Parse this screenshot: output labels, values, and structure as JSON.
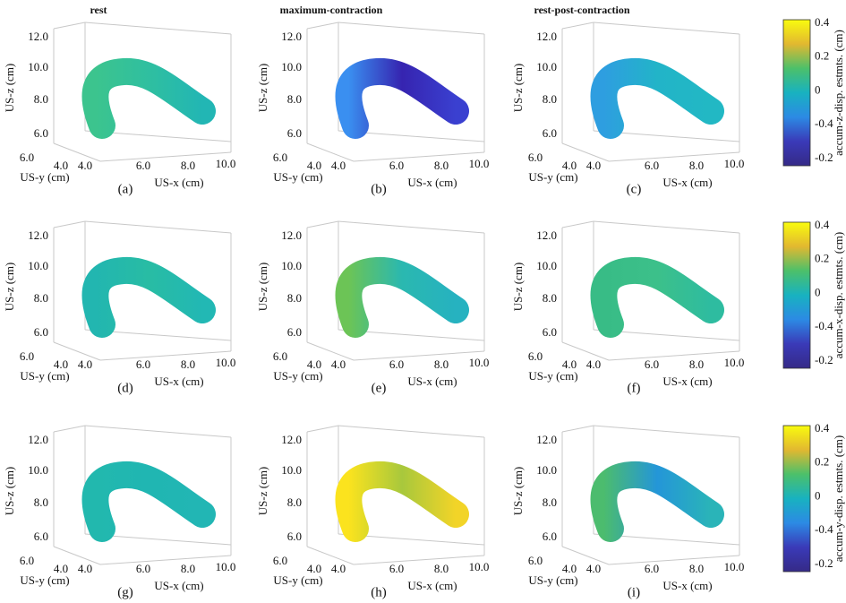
{
  "columns": [
    "rest",
    "maximum-contraction",
    "rest-post-contraction"
  ],
  "axes": {
    "x_label": "US-x (cm)",
    "y_label": "US-y (cm)",
    "z_label": "US-z (cm)",
    "x_ticks": [
      "4.0",
      "6.0",
      "8.0",
      "10.0"
    ],
    "y_ticks": [
      "6.0",
      "4.0"
    ],
    "z_ticks": [
      "12.0",
      "10.0",
      "8.0",
      "6.0"
    ]
  },
  "panels": [
    {
      "caption": "(a)",
      "colors": [
        "#3cc48e",
        "#2fbfa0",
        "#22b6b4"
      ]
    },
    {
      "caption": "(b)",
      "colors": [
        "#3a8ff0",
        "#3624b0",
        "#3a40d0"
      ]
    },
    {
      "caption": "(c)",
      "colors": [
        "#2e9ee0",
        "#22b4c8",
        "#22b8c4"
      ]
    },
    {
      "caption": "(d)",
      "colors": [
        "#22b6b0",
        "#28bca4",
        "#22b8b4"
      ]
    },
    {
      "caption": "(e)",
      "colors": [
        "#6cc456",
        "#2ab8b0",
        "#26b2c0"
      ]
    },
    {
      "caption": "(f)",
      "colors": [
        "#38bc86",
        "#3cc08a",
        "#2ebca0"
      ]
    },
    {
      "caption": "(g)",
      "colors": [
        "#22b8ae",
        "#20b6b2",
        "#22b6b4"
      ]
    },
    {
      "caption": "(h)",
      "colors": [
        "#fbe31e",
        "#a8c83c",
        "#f2d428"
      ]
    },
    {
      "caption": "(i)",
      "colors": [
        "#4cbc6e",
        "#2496d8",
        "#2ab4b8"
      ]
    }
  ],
  "colorbars": [
    {
      "label": "accum-z-disp. estmts. (cm)",
      "tick_labels": [
        "0.4",
        "0.2",
        "0",
        "-0.4",
        "-0.2"
      ]
    },
    {
      "label": "accum-x-disp. estmts. (cm)",
      "tick_labels": [
        "0.4",
        "0.2",
        "0",
        "-0.4",
        "-0.2"
      ]
    },
    {
      "label": "accum-y-disp. estmts. (cm)",
      "tick_labels": [
        "0.4",
        "0.2",
        "0",
        "-0.4",
        "-0.2"
      ]
    }
  ],
  "colormap": [
    "#f9fb0e",
    "#e2b830",
    "#4cc06a",
    "#18b2c0",
    "#2c8ae4",
    "#3a3ab8",
    "#352a87"
  ]
}
